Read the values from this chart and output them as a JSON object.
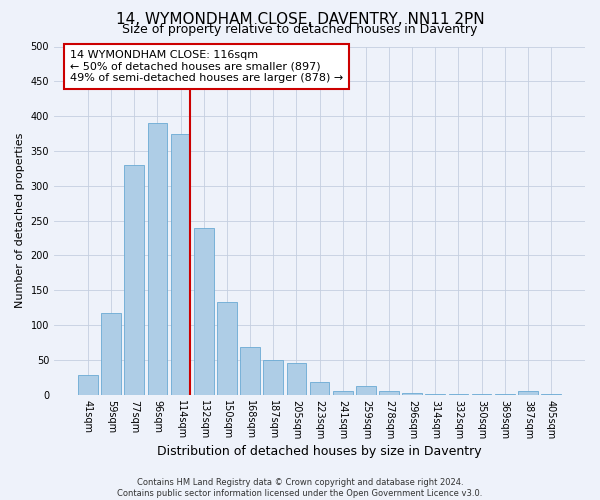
{
  "title": "14, WYMONDHAM CLOSE, DAVENTRY, NN11 2PN",
  "subtitle": "Size of property relative to detached houses in Daventry",
  "xlabel": "Distribution of detached houses by size in Daventry",
  "ylabel": "Number of detached properties",
  "categories": [
    "41sqm",
    "59sqm",
    "77sqm",
    "96sqm",
    "114sqm",
    "132sqm",
    "150sqm",
    "168sqm",
    "187sqm",
    "205sqm",
    "223sqm",
    "241sqm",
    "259sqm",
    "278sqm",
    "296sqm",
    "314sqm",
    "332sqm",
    "350sqm",
    "369sqm",
    "387sqm",
    "405sqm"
  ],
  "values": [
    28,
    118,
    330,
    390,
    375,
    240,
    133,
    68,
    50,
    45,
    18,
    6,
    13,
    5,
    2,
    1,
    1,
    1,
    1,
    6,
    1
  ],
  "bar_color": "#aecde6",
  "bar_edge_color": "#6aaad4",
  "vline_color": "#cc0000",
  "ylim": [
    0,
    500
  ],
  "yticks": [
    0,
    50,
    100,
    150,
    200,
    250,
    300,
    350,
    400,
    450,
    500
  ],
  "annotation_text": "14 WYMONDHAM CLOSE: 116sqm\n← 50% of detached houses are smaller (897)\n49% of semi-detached houses are larger (878) →",
  "annotation_box_facecolor": "#ffffff",
  "annotation_box_edgecolor": "#cc0000",
  "footer_line1": "Contains HM Land Registry data © Crown copyright and database right 2024.",
  "footer_line2": "Contains public sector information licensed under the Open Government Licence v3.0.",
  "background_color": "#eef2fa",
  "grid_color": "#c5cfe0",
  "title_fontsize": 11,
  "subtitle_fontsize": 9,
  "xlabel_fontsize": 9,
  "ylabel_fontsize": 8,
  "tick_fontsize": 7,
  "annotation_fontsize": 8,
  "footer_fontsize": 6
}
